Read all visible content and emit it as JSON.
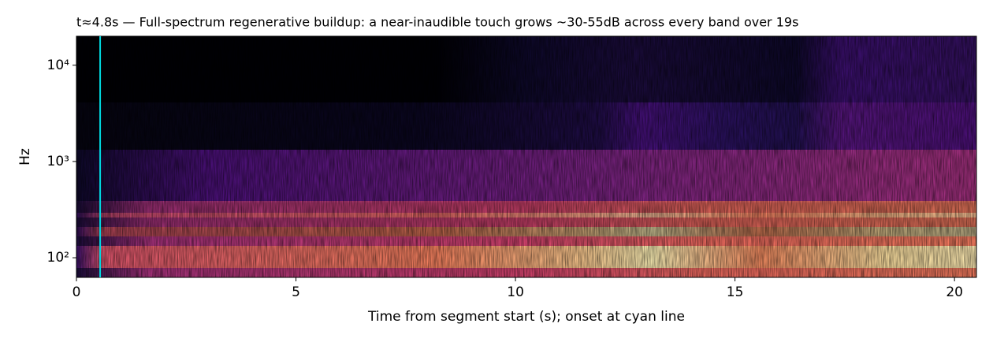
{
  "chart_data": {
    "type": "spectrogram",
    "title": "t≈4.8s — Full-spectrum regenerative buildup: a near-inaudible touch grows ~30-55dB across every band over 19s",
    "xlabel": "Time from segment start (s); onset at cyan line",
    "ylabel": "Hz",
    "xlim": [
      0,
      20.5
    ],
    "xticks": [
      0,
      5,
      10,
      15,
      20
    ],
    "ylim": [
      62.5,
      20000
    ],
    "ylog": true,
    "yticks": [
      {
        "value": 100,
        "label": "10²"
      },
      {
        "value": 1000,
        "label": "10³"
      },
      {
        "value": 10000,
        "label": "10⁴"
      }
    ],
    "colormap": "magma",
    "onset": {
      "x": 0.54,
      "color": "#00d8e0"
    }
  }
}
